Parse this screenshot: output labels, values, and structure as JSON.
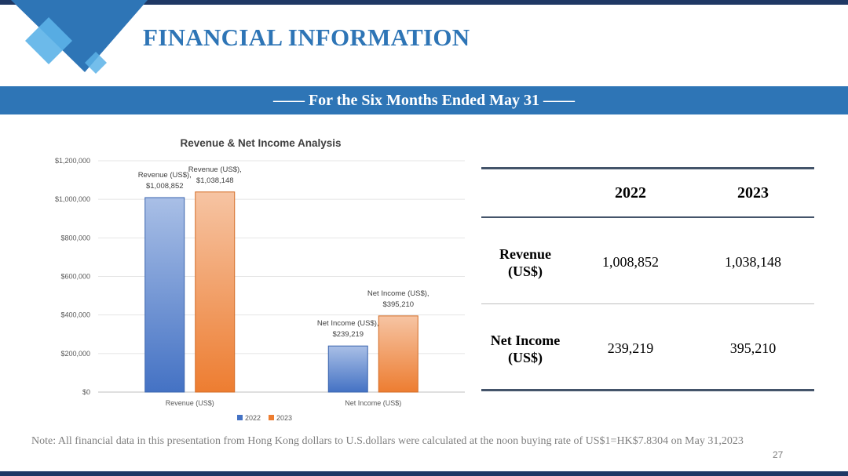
{
  "slide": {
    "title": "FINANCIAL INFORMATION",
    "subtitle": "—— For the Six Months Ended May 31 ——",
    "note": "Note: All financial data in this presentation from Hong Kong dollars to U.S.dollars were calculated at the noon buying rate of US$1=HK$7.8304 on May 31,2023",
    "page_number": "27"
  },
  "colors": {
    "navy": "#1f3864",
    "brand_blue": "#2e75b6",
    "series_2022": "#4472c4",
    "series_2023": "#ed7d31"
  },
  "chart_data": {
    "type": "bar",
    "title": "Revenue & Net Income Analysis",
    "categories": [
      "Revenue (US$)",
      "Net Income (US$)"
    ],
    "series": [
      {
        "name": "2022",
        "values": [
          1008852,
          239219
        ],
        "labels": [
          [
            "Revenue (US$),",
            "$1,008,852"
          ],
          [
            "Net Income (US$),",
            "$239,219"
          ]
        ]
      },
      {
        "name": "2023",
        "values": [
          1038148,
          395210
        ],
        "labels": [
          [
            "Revenue (US$),",
            "$1,038,148"
          ],
          [
            "Net Income (US$),",
            "$395,210"
          ]
        ]
      }
    ],
    "yticks": [
      "$0",
      "$200,000",
      "$400,000",
      "$600,000",
      "$800,000",
      "$1,000,000",
      "$1,200,000"
    ],
    "ylim": [
      0,
      1200000
    ],
    "grid": true,
    "legend_position": "bottom"
  },
  "table": {
    "headers": [
      "2022",
      "2023"
    ],
    "rows": [
      {
        "label_line1": "Revenue",
        "label_line2": "(US$)",
        "values": [
          "1,008,852",
          "1,038,148"
        ]
      },
      {
        "label_line1": "Net Income",
        "label_line2": "(US$)",
        "values": [
          "239,219",
          "395,210"
        ]
      }
    ]
  }
}
